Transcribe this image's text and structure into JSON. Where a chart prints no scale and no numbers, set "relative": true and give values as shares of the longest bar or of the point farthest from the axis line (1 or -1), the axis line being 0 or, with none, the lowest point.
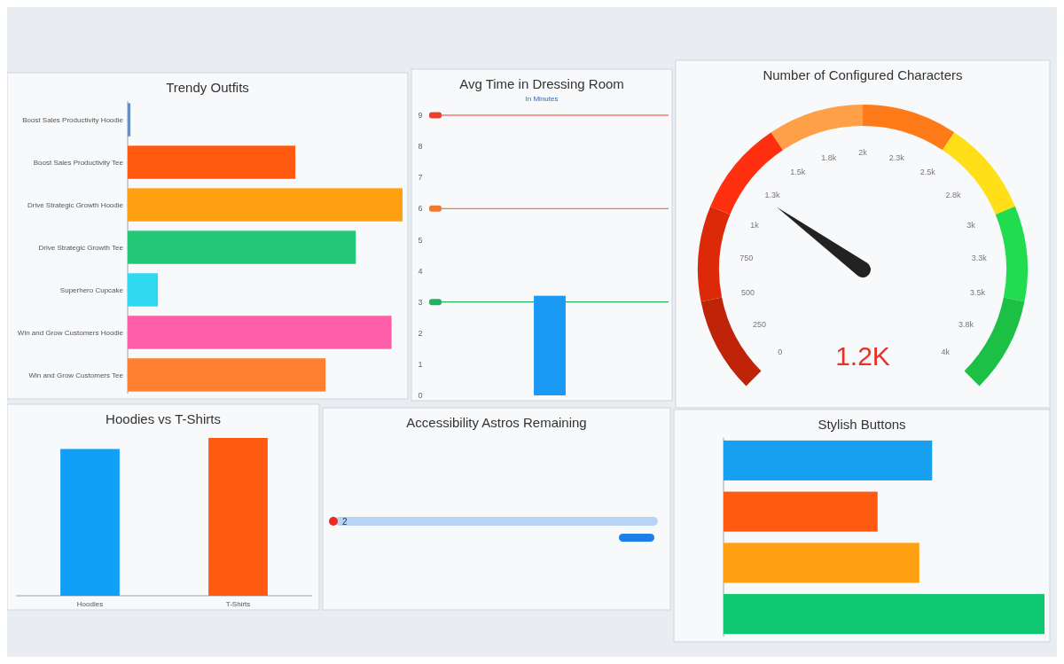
{
  "chart_data": [
    {
      "type": "bar",
      "title": "Trendy Outfits",
      "orientation": "horizontal",
      "relative": true,
      "categories": [
        "Boost Sales Productivity Hoodie",
        "Boost Sales Productivity Tee",
        "Drive Strategic Growth Hoodie",
        "Drive Strategic Growth Tee",
        "Superhero Cupcake",
        "Win and Grow Customers Hoodie",
        "Win and Grow Customers Tee"
      ],
      "values": [
        0.01,
        0.61,
        1,
        0.83,
        0.11,
        0.96,
        0.72
      ],
      "colors": [
        "#6a8fbf",
        "#ff5a10",
        "#ffa010",
        "#22c878",
        "#30d8f0",
        "#ff5fa8",
        "#ff8030"
      ]
    },
    {
      "type": "bar",
      "title": "Avg Time in Dressing Room",
      "subtitle": "In Minutes",
      "categories": [
        null
      ],
      "values": [
        3.2
      ],
      "colors": [
        "#1a9af5"
      ],
      "ylim": [
        0,
        9
      ],
      "yticks": [
        0,
        1,
        2,
        3,
        4,
        5,
        6,
        7,
        8,
        9
      ],
      "ref_lines": [
        {
          "axis": "y",
          "value": 9,
          "color": "#e8402a"
        },
        {
          "axis": "y",
          "value": 6,
          "color": "#f07830"
        },
        {
          "axis": "y",
          "value": 3,
          "color": "#22b060"
        }
      ]
    },
    {
      "type": "other",
      "title": "Number of Configured Characters",
      "colors": [
        "#c02408",
        "#dc2a08",
        "#ff3010",
        "#ffa048",
        "#ff7a18",
        "#ffe018",
        "#22dc50",
        "#1cc044"
      ],
      "annotations": [
        "0",
        "250",
        "500",
        "750",
        "1k",
        "1.3k",
        "1.5k",
        "1.8k",
        "2k",
        "2.3k",
        "2.5k",
        "2.8k",
        "3k",
        "3.3k",
        "3.5k",
        "3.8k",
        "4k",
        "1.2K"
      ]
    },
    {
      "type": "bar",
      "title": "Hoodies vs T-Shirts",
      "relative": true,
      "categories": [
        "Hoodies",
        "T-Shirts"
      ],
      "values": [
        0.93,
        1
      ],
      "colors": [
        "#10a0f8",
        "#ff5a10"
      ]
    },
    {
      "type": "other",
      "title": "Accessibility Astros Remaining",
      "annotations": [
        "2"
      ]
    },
    {
      "type": "bar",
      "title": "Stylish Buttons",
      "orientation": "horizontal",
      "relative": true,
      "categories": [
        null,
        null,
        null,
        null
      ],
      "values": [
        0.65,
        0.48,
        0.61,
        1
      ],
      "colors": [
        "#18a0f0",
        "#ff5a10",
        "#ffa010",
        "#10c870"
      ]
    }
  ]
}
